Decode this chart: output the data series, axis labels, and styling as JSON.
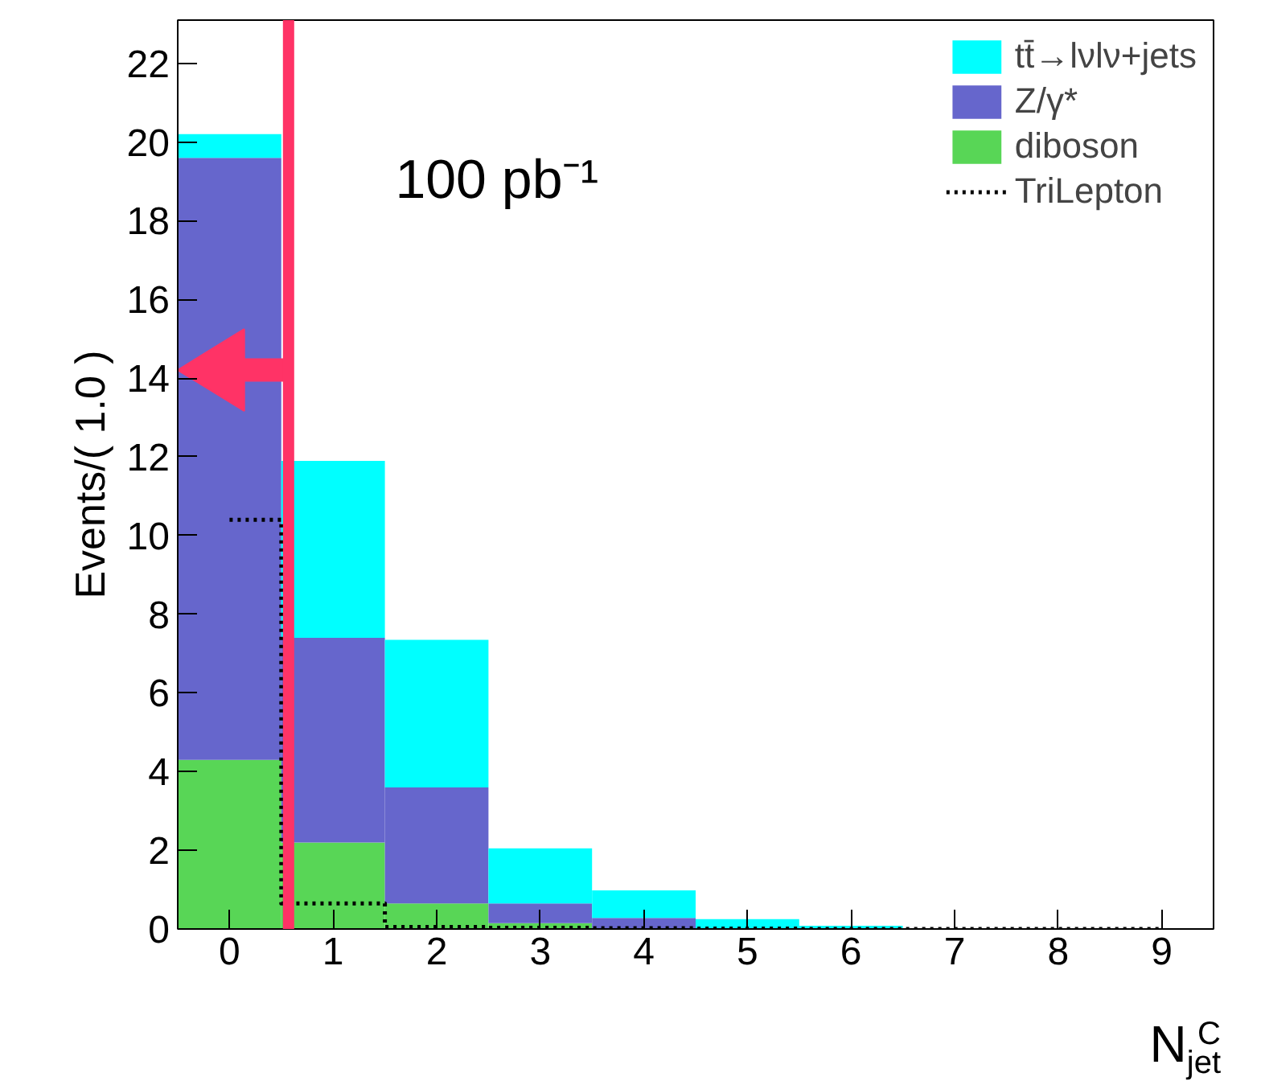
{
  "chart_data": {
    "type": "bar",
    "stacked": true,
    "xlabel": "N$^{C}$$_{jet}$",
    "ylabel": "Events/( 1.0 )",
    "annotations": [
      "100 pb⁻¹"
    ],
    "x": [
      0,
      1,
      2,
      3,
      4,
      5,
      6,
      7,
      8,
      9
    ],
    "series": [
      {
        "name": "diboson",
        "color": "#58d656",
        "values": [
          4.3,
          2.2,
          0.65,
          0.15,
          null,
          0,
          0,
          0,
          0,
          0
        ]
      },
      {
        "name": "Z/γ*",
        "color": "#6666cc",
        "values": [
          15.3,
          5.2,
          2.95,
          0.5,
          0.28,
          null,
          0,
          0,
          0,
          0
        ]
      },
      {
        "name": "tt̄→lνlν+jets",
        "color": "#00ffff",
        "values": [
          0.6,
          4.5,
          3.75,
          1.4,
          0.7,
          0.25,
          0.08,
          0,
          0,
          0
        ]
      },
      {
        "name": "TriLepton",
        "type": "step",
        "color": "#000000",
        "line_style": "dotted",
        "values": [
          10.4,
          0.65,
          0.05,
          0.03,
          0.02,
          0.01,
          0,
          0,
          0,
          0
        ]
      }
    ],
    "ref_lines": [
      {
        "axis": "x",
        "value": 0.57,
        "color": "#ff3366"
      }
    ],
    "xlim": [
      -0.5,
      9.5
    ],
    "ylim": [
      0,
      23.1
    ],
    "xticks": [
      0,
      1,
      2,
      3,
      4,
      5,
      6,
      7,
      8,
      9
    ],
    "yticks": [
      0,
      2,
      4,
      6,
      8,
      10,
      12,
      14,
      16,
      18,
      20,
      22
    ],
    "grid": false,
    "legend": "top right"
  }
}
